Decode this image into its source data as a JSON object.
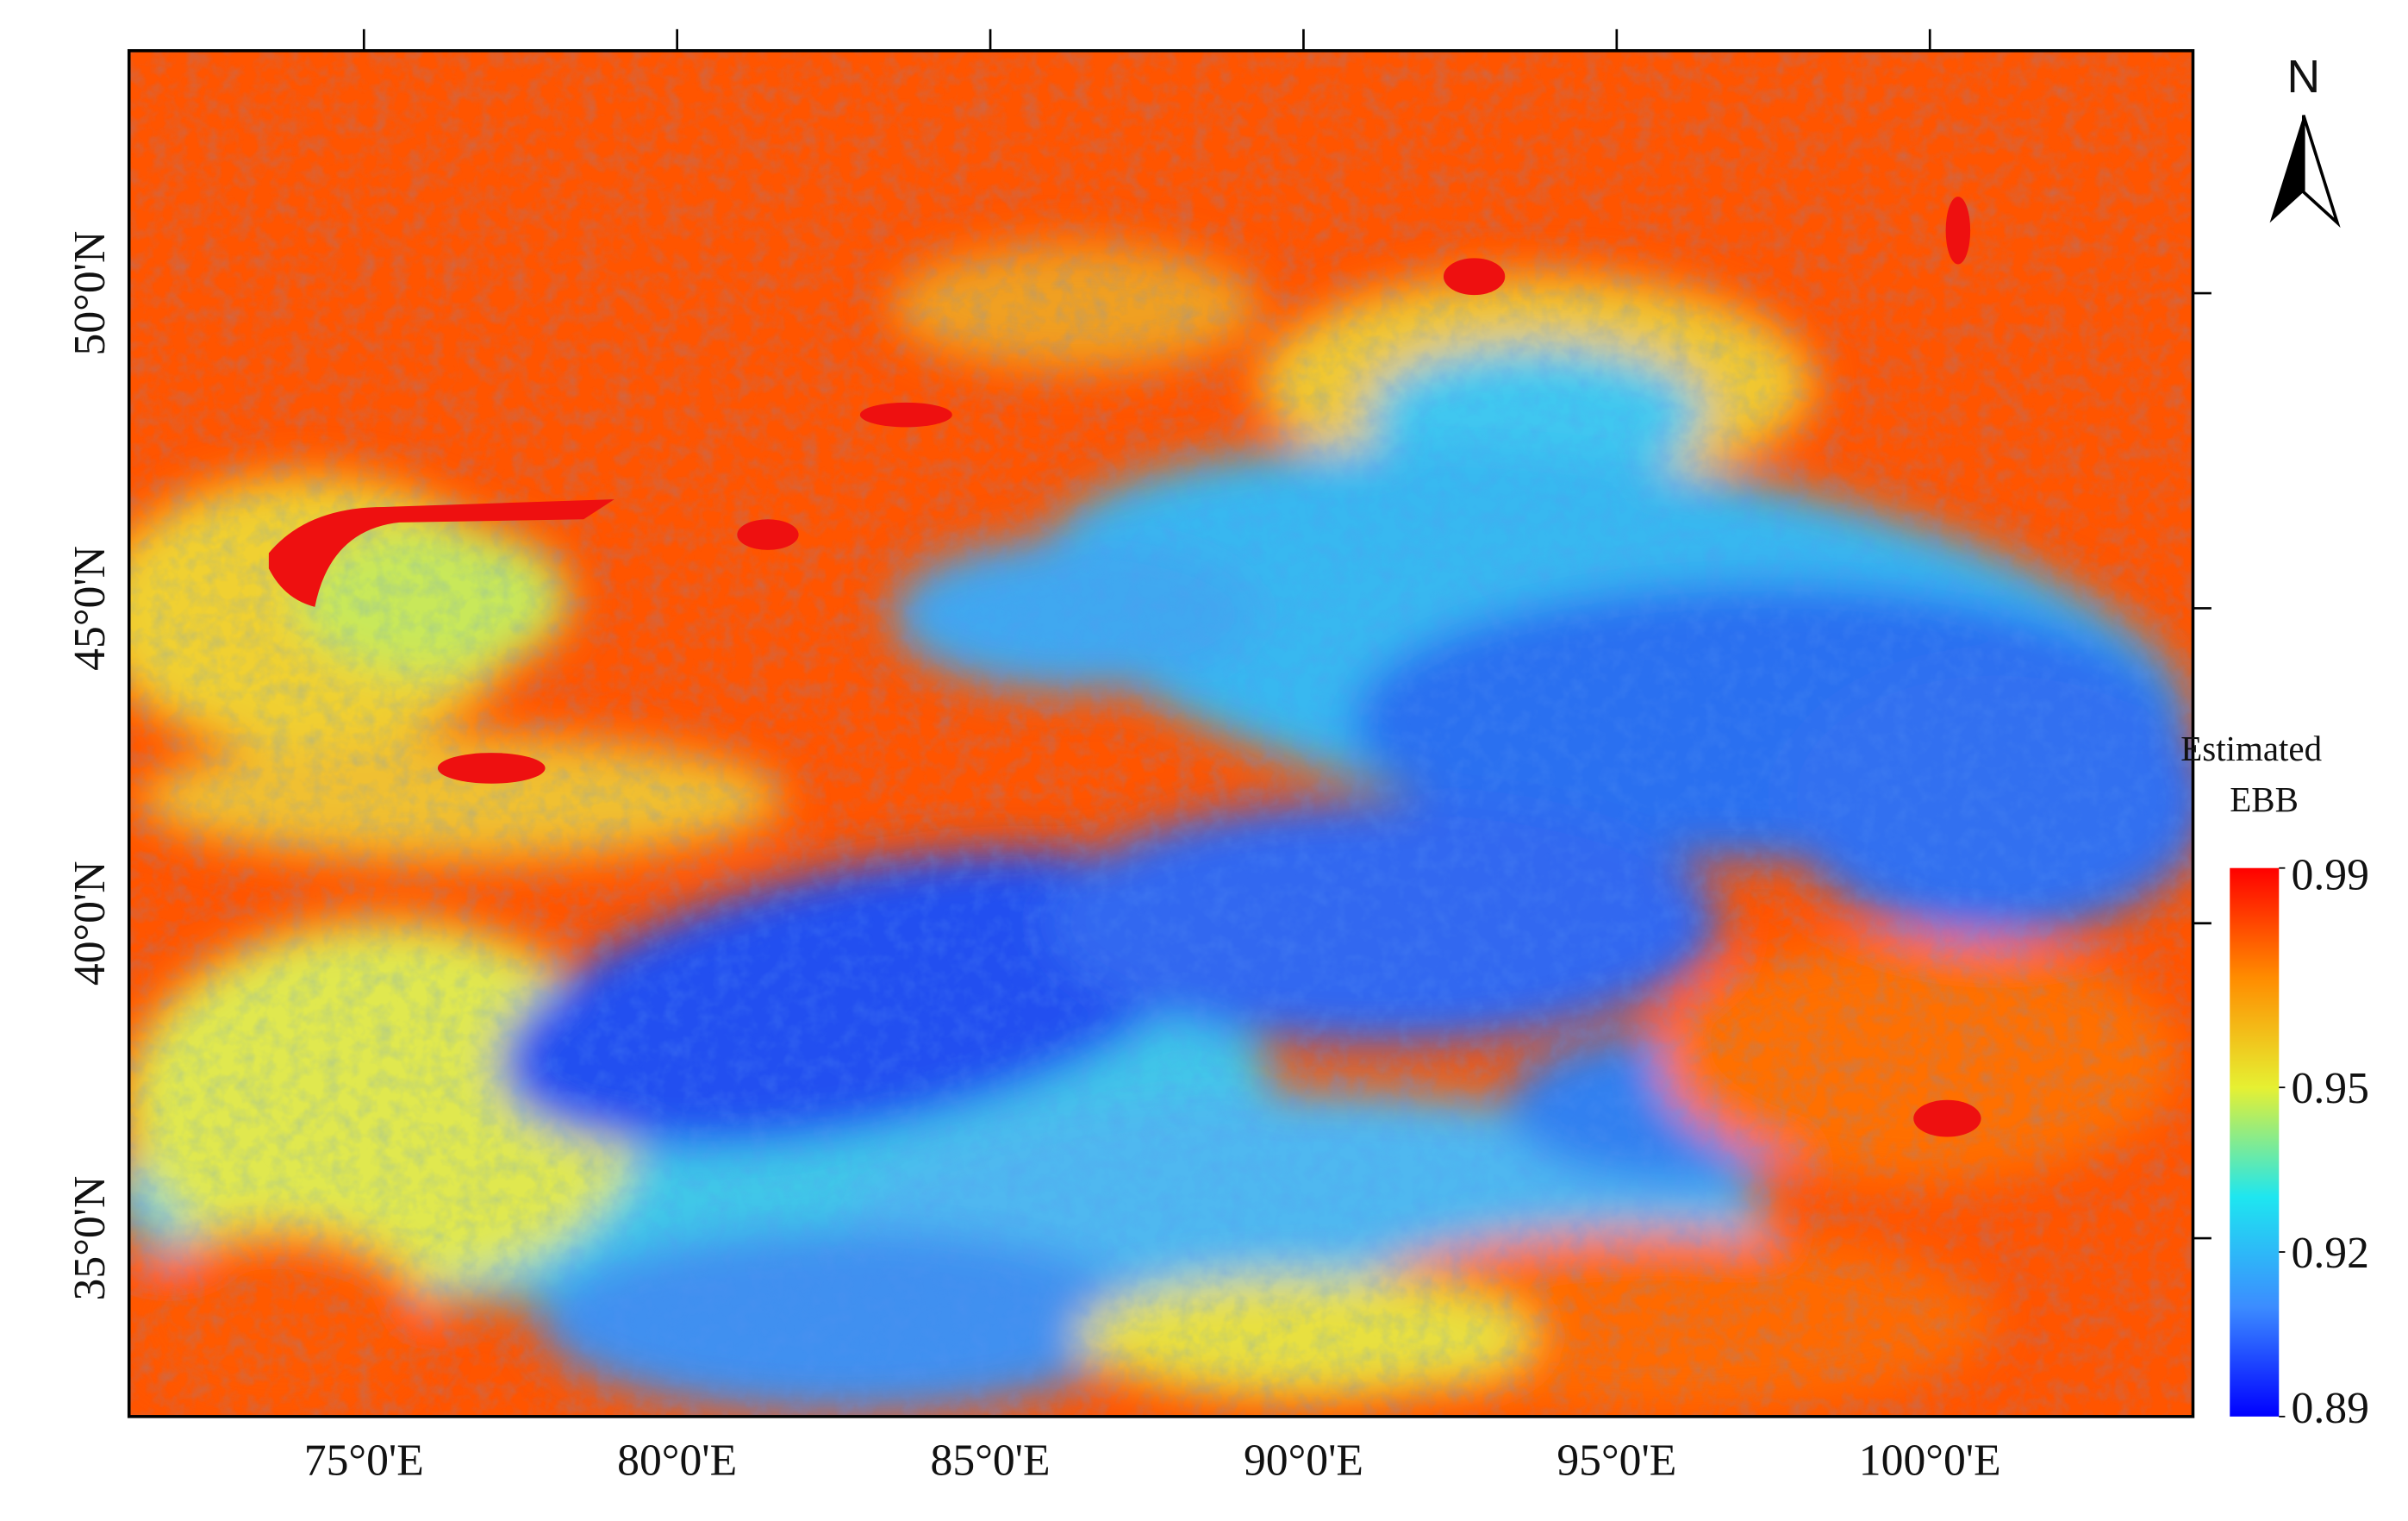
{
  "map": {
    "north_label": "N",
    "xlim": [
      71.25,
      104.2
    ],
    "ylim": [
      32.17,
      53.85
    ],
    "xticks": [
      {
        "value": 75,
        "label": "75°0'E"
      },
      {
        "value": 80,
        "label": "80°0'E"
      },
      {
        "value": 85,
        "label": "85°0'E"
      },
      {
        "value": 90,
        "label": "90°0'E"
      },
      {
        "value": 95,
        "label": "95°0'E"
      },
      {
        "value": 100,
        "label": "100°0'E"
      }
    ],
    "yticks": [
      {
        "value": 35,
        "label": "35°0'N"
      },
      {
        "value": 40,
        "label": "40°0'N"
      },
      {
        "value": 45,
        "label": "45°0'N"
      },
      {
        "value": 50,
        "label": "50°0'N"
      }
    ],
    "legend": {
      "title": [
        "Estimated",
        "EBB"
      ],
      "lim": [
        0.89,
        0.99
      ],
      "ticks": [
        0.99,
        0.95,
        0.92,
        0.89
      ],
      "colors": [
        "#0000ff",
        "#3c8cff",
        "#1ee6f0",
        "#e6f032",
        "#ff8c00",
        "#ff0000"
      ]
    }
  }
}
